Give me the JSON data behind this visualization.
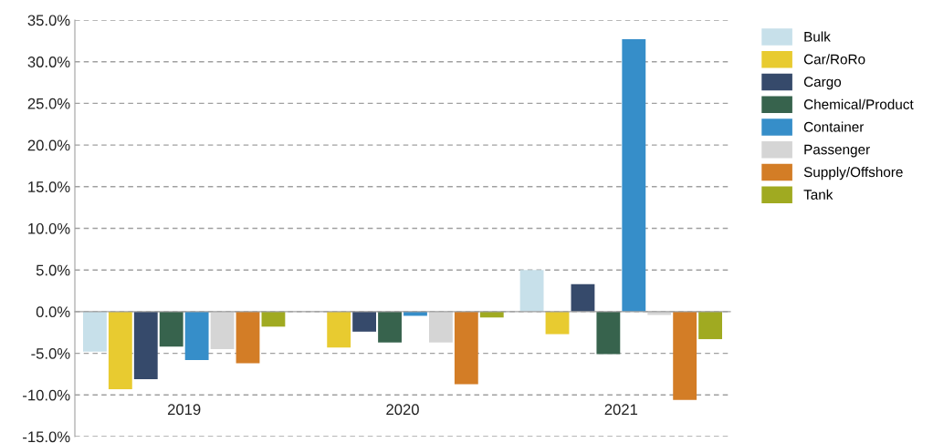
{
  "chart_data": {
    "type": "bar",
    "categories": [
      "2019",
      "2020",
      "2021"
    ],
    "series": [
      {
        "name": "Bulk",
        "color": "#c7e0ea",
        "values": [
          -4.8,
          0,
          5.0
        ]
      },
      {
        "name": "Car/RoRo",
        "color": "#e8cb30",
        "values": [
          -9.3,
          -4.3,
          -2.7
        ]
      },
      {
        "name": "Cargo",
        "color": "#364a6b",
        "values": [
          -8.1,
          -2.4,
          3.3
        ]
      },
      {
        "name": "Chemical/Product",
        "color": "#37634d",
        "values": [
          -4.2,
          -3.7,
          -5.1
        ]
      },
      {
        "name": "Container",
        "color": "#368ec9",
        "values": [
          -5.8,
          -0.5,
          32.7
        ]
      },
      {
        "name": "Passenger",
        "color": "#d5d5d5",
        "values": [
          -4.5,
          -3.7,
          -0.4
        ]
      },
      {
        "name": "Supply/Offshore",
        "color": "#d37d26",
        "values": [
          -6.2,
          -8.7,
          -10.6
        ]
      },
      {
        "name": "Tank",
        "color": "#a0aa21",
        "values": [
          -1.8,
          -0.7,
          -3.3
        ]
      }
    ],
    "ylim": [
      -15,
      35
    ],
    "yticks": [
      {
        "value": -15,
        "label": "-15.0%"
      },
      {
        "value": -10,
        "label": "-10.0%"
      },
      {
        "value": -5,
        "label": "-5.0%"
      },
      {
        "value": 0,
        "label": "0.0%"
      },
      {
        "value": 5,
        "label": "5.0%"
      },
      {
        "value": 10,
        "label": "10.0%"
      },
      {
        "value": 15,
        "label": "15.0%"
      },
      {
        "value": 20,
        "label": "20.0%"
      },
      {
        "value": 25,
        "label": "25.0%"
      },
      {
        "value": 30,
        "label": "30.0%"
      },
      {
        "value": 35,
        "label": "35.0%"
      }
    ],
    "grid": "y",
    "legend": "right"
  }
}
